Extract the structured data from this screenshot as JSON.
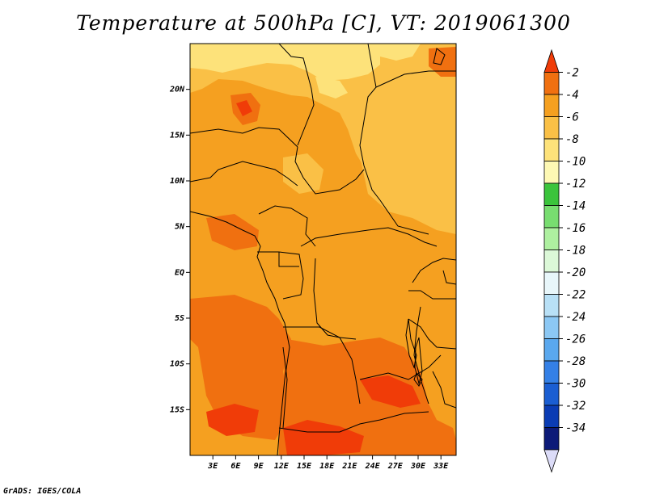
{
  "title": "Temperature at 500hPa [C], VT: 2019061300",
  "credit": "GrADS: IGES/COLA",
  "map": {
    "lon_range": [
      0,
      35
    ],
    "lat_range": [
      -20,
      25
    ],
    "x_ticks": [
      {
        "lon": 3,
        "label": "3E"
      },
      {
        "lon": 6,
        "label": "6E"
      },
      {
        "lon": 9,
        "label": "9E"
      },
      {
        "lon": 12,
        "label": "12E"
      },
      {
        "lon": 15,
        "label": "15E"
      },
      {
        "lon": 18,
        "label": "18E"
      },
      {
        "lon": 21,
        "label": "21E"
      },
      {
        "lon": 24,
        "label": "24E"
      },
      {
        "lon": 27,
        "label": "27E"
      },
      {
        "lon": 30,
        "label": "30E"
      },
      {
        "lon": 33,
        "label": "33E"
      }
    ],
    "y_ticks": [
      {
        "lat": 20,
        "label": "20N"
      },
      {
        "lat": 15,
        "label": "15N"
      },
      {
        "lat": 10,
        "label": "10N"
      },
      {
        "lat": 5,
        "label": "5N"
      },
      {
        "lat": 0,
        "label": "EQ"
      },
      {
        "lat": -5,
        "label": "5S"
      },
      {
        "lat": -10,
        "label": "10S"
      },
      {
        "lat": -15,
        "label": "15S"
      }
    ],
    "colors": {
      "t_m2_plus": "#f03c08",
      "t_m2_m4": "#f07010",
      "t_m4_m6": "#f5a020",
      "t_m6_m8": "#fac046",
      "t_m8_m10": "#fde27a",
      "border": "#000000"
    }
  },
  "colorbar": {
    "labels": [
      "-2",
      "-4",
      "-6",
      "-8",
      "-10",
      "-12",
      "-14",
      "-16",
      "-18",
      "-20",
      "-22",
      "-24",
      "-26",
      "-28",
      "-30",
      "-32",
      "-34"
    ],
    "colors": [
      "#f03c08",
      "#f07010",
      "#f5a020",
      "#fac046",
      "#fde27a",
      "#fdf8b4",
      "#3bc43c",
      "#78dd70",
      "#aef0a0",
      "#dcf8d8",
      "#e8f6fa",
      "#b8e0f6",
      "#8cc8f4",
      "#5aa8ee",
      "#3480e6",
      "#1a5ed2",
      "#0a3cb4",
      "#0c1a78",
      "#dcdcf8"
    ]
  }
}
